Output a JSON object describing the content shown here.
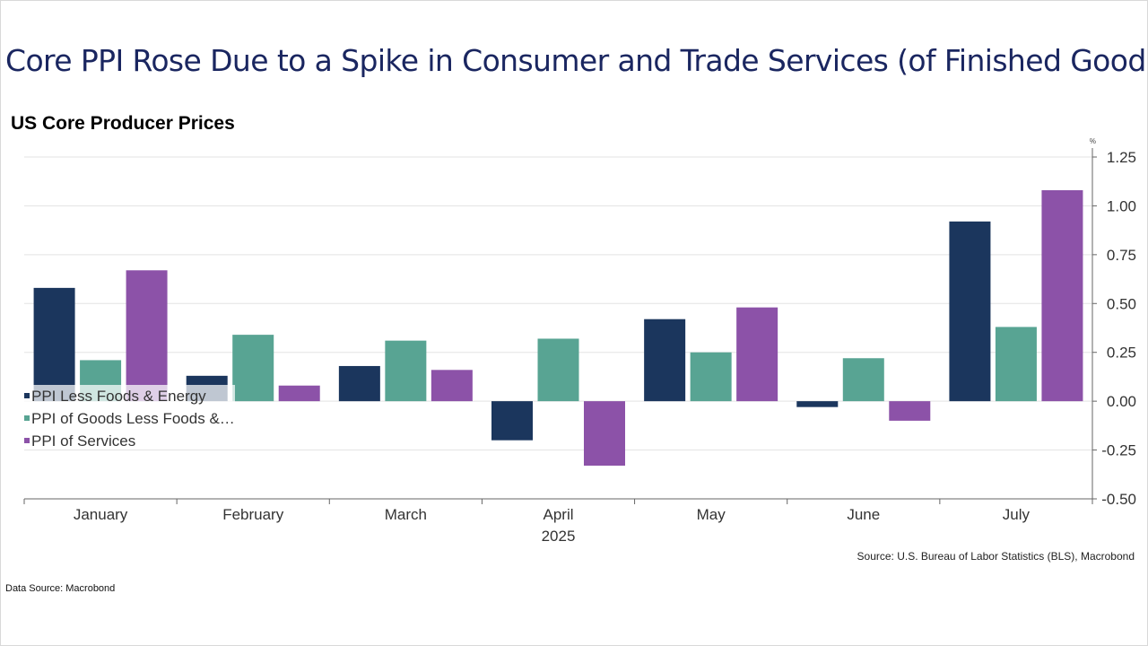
{
  "slide": {
    "title": "Core PPI Rose Due to a Spike in Consumer and Trade Services (of Finished Goods)",
    "data_source": "Data Source: Macrobond"
  },
  "chart_data": {
    "type": "bar",
    "title": "US Core Producer Prices",
    "ylabel": "%",
    "xlabel": "2025",
    "ylim": [
      -0.5,
      1.25
    ],
    "yticks": [
      1.25,
      1.0,
      0.75,
      0.5,
      0.25,
      0.0,
      -0.25,
      -0.5
    ],
    "ytick_labels": [
      "1.25",
      "1.00",
      "0.75",
      "0.50",
      "0.25",
      "0.00",
      "-0.25",
      "-0.50"
    ],
    "grid": true,
    "legend_position": "bottom-left",
    "categories": [
      "January",
      "February",
      "March",
      "April",
      "May",
      "June",
      "July"
    ],
    "series": [
      {
        "name": "PPI Less Foods & Energy",
        "color": "#1b365d",
        "values": [
          0.58,
          0.13,
          0.18,
          -0.2,
          0.42,
          -0.03,
          0.92
        ]
      },
      {
        "name": "PPI of Goods Less Foods &…",
        "color": "#58a493",
        "values": [
          0.21,
          0.34,
          0.31,
          0.32,
          0.25,
          0.22,
          0.38
        ]
      },
      {
        "name": "PPI of Services",
        "color": "#8c52a8",
        "values": [
          0.67,
          0.08,
          0.16,
          -0.33,
          0.48,
          -0.1,
          1.08
        ]
      }
    ],
    "source": "Source: U.S. Bureau of Labor Statistics (BLS), Macrobond"
  }
}
